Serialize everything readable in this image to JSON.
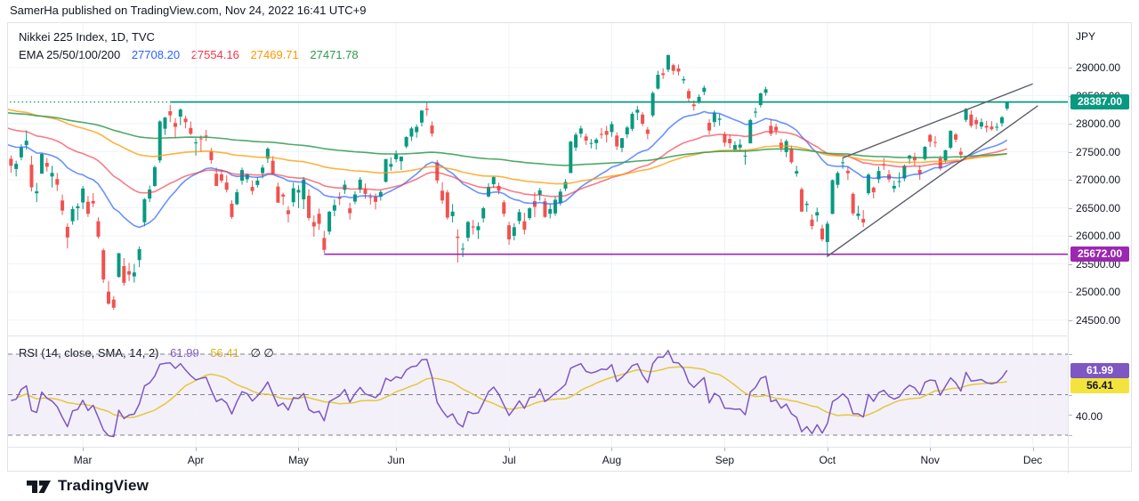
{
  "attribution": "SamerHa published on TradingView.com, Nov 24, 2022 16:41 UTC+9",
  "footer": {
    "brand": "TradingView"
  },
  "chart_data": {
    "type": "candlestick",
    "title": "Nikkei 225 Index, 1D, TVC",
    "legend": {
      "title": "Nikkei 225 Index, 1D, TVC",
      "ema_label": "EMA 25/50/100/200",
      "ema_values": [
        "27708.20",
        "27554.16",
        "27469.71",
        "27471.78"
      ],
      "ema_colors": [
        "#2962ff",
        "#f23645",
        "#ff9800",
        "#2e9b4e"
      ]
    },
    "price_axis": {
      "currency": "JPY",
      "ticks": [
        {
          "label": "29000.00",
          "price": 29000
        },
        {
          "label": "28500.00",
          "price": 28500
        },
        {
          "label": "28000.00",
          "price": 28000
        },
        {
          "label": "27500.00",
          "price": 27500
        },
        {
          "label": "27000.00",
          "price": 27000
        },
        {
          "label": "26500.00",
          "price": 26500
        },
        {
          "label": "26000.00",
          "price": 26000
        },
        {
          "label": "25500.00",
          "price": 25500
        },
        {
          "label": "25000.00",
          "price": 25000
        },
        {
          "label": "24500.00",
          "price": 24500
        }
      ]
    },
    "time_axis": {
      "months": [
        {
          "label": "Mar",
          "index": 15
        },
        {
          "label": "Apr",
          "index": 37
        },
        {
          "label": "May",
          "index": 57
        },
        {
          "label": "Jun",
          "index": 76
        },
        {
          "label": "Jul",
          "index": 98
        },
        {
          "label": "Aug",
          "index": 118
        },
        {
          "label": "Sep",
          "index": 140
        },
        {
          "label": "Oct",
          "index": 160
        },
        {
          "label": "Nov",
          "index": 180
        },
        {
          "label": "Dec",
          "index": 200
        }
      ]
    },
    "candles": [
      [
        27300,
        27499,
        27172,
        27440
      ],
      [
        27374,
        27434,
        27123,
        27249
      ],
      [
        27192,
        27340,
        27060,
        27284
      ],
      [
        27400,
        27633,
        27347,
        27580
      ],
      [
        27618,
        27881,
        27541,
        27696
      ],
      [
        27268,
        27427,
        26793,
        26866
      ],
      [
        26759,
        26944,
        26602,
        26793
      ],
      [
        27110,
        27478,
        27102,
        27460
      ],
      [
        27301,
        27391,
        27148,
        27233
      ],
      [
        27058,
        27250,
        26862,
        27122
      ],
      [
        27013,
        27123,
        26800,
        26911
      ],
      [
        26630,
        26734,
        26371,
        26450
      ],
      [
        26160,
        26221,
        25775,
        25971
      ],
      [
        26260,
        26530,
        26198,
        26477
      ],
      [
        26493,
        26582,
        26278,
        26527
      ],
      [
        26595,
        26888,
        26478,
        26844
      ],
      [
        26608,
        26712,
        26336,
        26393
      ],
      [
        26622,
        26760,
        26512,
        26577
      ],
      [
        26260,
        26330,
        25954,
        25985
      ],
      [
        25743,
        25774,
        25159,
        25221
      ],
      [
        25004,
        25196,
        24771,
        24790
      ],
      [
        24862,
        24928,
        24681,
        24718
      ],
      [
        25266,
        25695,
        25256,
        25690
      ],
      [
        25459,
        25603,
        25111,
        25162
      ],
      [
        25370,
        25518,
        25194,
        25308
      ],
      [
        25276,
        25499,
        25166,
        25346
      ],
      [
        25568,
        25809,
        25442,
        25762
      ],
      [
        26242,
        26673,
        26172,
        26653
      ],
      [
        26665,
        26898,
        26602,
        26827
      ],
      [
        26890,
        27254,
        26874,
        27224
      ],
      [
        27345,
        28059,
        27299,
        28040
      ],
      [
        27910,
        28120,
        27800,
        28110
      ],
      [
        28222,
        28338,
        28028,
        28150
      ],
      [
        28012,
        28099,
        27745,
        27944
      ],
      [
        28127,
        28273,
        27973,
        28252
      ],
      [
        28091,
        28140,
        27916,
        28027
      ],
      [
        27924,
        28040,
        27795,
        27821
      ],
      [
        27665,
        27738,
        27430,
        27666
      ],
      [
        27738,
        27791,
        27493,
        27736
      ],
      [
        27789,
        27890,
        27688,
        27787
      ],
      [
        27509,
        27567,
        27290,
        27350
      ],
      [
        27107,
        27216,
        26888,
        26889
      ],
      [
        27097,
        27178,
        26943,
        26986
      ],
      [
        26950,
        27080,
        26774,
        26821
      ],
      [
        26572,
        26635,
        26304,
        26335
      ],
      [
        26564,
        26833,
        26547,
        26777
      ],
      [
        26984,
        27217,
        26912,
        27172
      ],
      [
        27011,
        27107,
        26945,
        27093
      ],
      [
        26872,
        26985,
        26733,
        26799
      ],
      [
        26907,
        27048,
        26862,
        26985
      ],
      [
        27119,
        27267,
        27025,
        27217
      ],
      [
        27377,
        27580,
        27301,
        27553
      ],
      [
        27339,
        27421,
        27088,
        27105
      ],
      [
        26879,
        26949,
        26590,
        26591
      ],
      [
        26737,
        26770,
        26550,
        26700
      ],
      [
        26455,
        26529,
        26239,
        26386
      ],
      [
        26600,
        26948,
        26520,
        26848
      ],
      [
        26771,
        26900,
        26495,
        26819
      ],
      [
        26650,
        27049,
        26477,
        27004
      ],
      [
        26715,
        26830,
        26274,
        26319
      ],
      [
        26245,
        26364,
        25983,
        26167
      ],
      [
        26394,
        26485,
        26107,
        26214
      ],
      [
        25961,
        26090,
        25688,
        25749
      ],
      [
        26075,
        26447,
        26020,
        26428
      ],
      [
        26450,
        26650,
        26349,
        26547
      ],
      [
        26687,
        26778,
        26548,
        26660
      ],
      [
        26819,
        26990,
        26746,
        26912
      ],
      [
        26490,
        26590,
        26289,
        26403
      ],
      [
        26611,
        26795,
        26565,
        26739
      ],
      [
        26822,
        27046,
        26763,
        27002
      ],
      [
        26834,
        26933,
        26658,
        26748
      ],
      [
        26690,
        26757,
        26556,
        26678
      ],
      [
        26699,
        26755,
        26470,
        26605
      ],
      [
        26698,
        26810,
        26628,
        26782
      ],
      [
        26962,
        27370,
        26953,
        27369
      ],
      [
        27232,
        27400,
        27160,
        27280
      ],
      [
        27366,
        27524,
        27310,
        27458
      ],
      [
        27330,
        27416,
        27175,
        27414
      ],
      [
        27593,
        27775,
        27560,
        27762
      ],
      [
        27770,
        27944,
        27690,
        27916
      ],
      [
        27848,
        27988,
        27750,
        27944
      ],
      [
        28020,
        28244,
        27950,
        28234
      ],
      [
        28268,
        28389,
        28141,
        28247
      ],
      [
        27968,
        28040,
        27770,
        27824
      ],
      [
        27310,
        27355,
        26933,
        26987
      ],
      [
        26804,
        26956,
        26571,
        26630
      ],
      [
        26775,
        26818,
        26290,
        26326
      ],
      [
        26350,
        26566,
        26240,
        26431
      ],
      [
        25986,
        26118,
        25520,
        25963
      ],
      [
        25770,
        25869,
        25621,
        25771
      ],
      [
        25966,
        26268,
        25902,
        26246
      ],
      [
        26168,
        26283,
        26025,
        26149
      ],
      [
        26100,
        26239,
        25943,
        26171
      ],
      [
        26312,
        26521,
        26240,
        26492
      ],
      [
        26702,
        26940,
        26686,
        26871
      ],
      [
        26920,
        27062,
        26856,
        27049
      ],
      [
        26890,
        26949,
        26739,
        26804
      ],
      [
        26598,
        26635,
        26339,
        26393
      ],
      [
        26188,
        26246,
        25841,
        25936
      ],
      [
        26000,
        26224,
        25920,
        26154
      ],
      [
        26264,
        26477,
        26205,
        26423
      ],
      [
        26260,
        26414,
        26026,
        26108
      ],
      [
        26317,
        26510,
        26282,
        26490
      ],
      [
        26620,
        26778,
        26333,
        26517
      ],
      [
        26730,
        26854,
        26630,
        26812
      ],
      [
        26617,
        26672,
        26323,
        26337
      ],
      [
        26393,
        26566,
        26310,
        26478
      ],
      [
        26400,
        26697,
        26355,
        26643
      ],
      [
        26580,
        26837,
        26542,
        26788
      ],
      [
        26842,
        27010,
        26800,
        26961
      ],
      [
        27119,
        27695,
        27119,
        27680
      ],
      [
        27575,
        27841,
        27513,
        27803
      ],
      [
        27822,
        27965,
        27752,
        27915
      ],
      [
        27772,
        27822,
        27622,
        27699
      ],
      [
        27640,
        27728,
        27560,
        27655
      ],
      [
        27654,
        27745,
        27539,
        27716
      ],
      [
        27818,
        27924,
        27733,
        27815
      ],
      [
        27870,
        27960,
        27666,
        27802
      ],
      [
        27850,
        28040,
        27767,
        27993
      ],
      [
        27788,
        27847,
        27530,
        27595
      ],
      [
        27569,
        27744,
        27491,
        27742
      ],
      [
        27810,
        27962,
        27744,
        27932
      ],
      [
        27907,
        28211,
        27868,
        28176
      ],
      [
        28197,
        28316,
        28064,
        28249
      ],
      [
        28163,
        28210,
        27958,
        27999
      ],
      [
        27896,
        27943,
        27727,
        27819
      ],
      [
        28147,
        28574,
        28117,
        28547
      ],
      [
        28626,
        28944,
        28608,
        28872
      ],
      [
        28898,
        28988,
        28797,
        28868
      ],
      [
        28964,
        29234,
        28918,
        29223
      ],
      [
        29044,
        29072,
        28873,
        28943
      ],
      [
        28985,
        29058,
        28860,
        28930
      ],
      [
        28772,
        28848,
        28712,
        28795
      ],
      [
        28583,
        28627,
        28397,
        28452
      ],
      [
        28344,
        28416,
        28236,
        28313
      ],
      [
        28389,
        28522,
        28356,
        28479
      ],
      [
        28567,
        28680,
        28508,
        28641
      ],
      [
        28016,
        28081,
        27805,
        27879
      ],
      [
        28030,
        28239,
        27940,
        28196
      ],
      [
        28069,
        28179,
        27965,
        28092
      ],
      [
        27811,
        27856,
        27592,
        27661
      ],
      [
        27730,
        27808,
        27560,
        27651
      ],
      [
        27531,
        27685,
        27500,
        27620
      ],
      [
        27574,
        27724,
        27506,
        27627
      ],
      [
        27428,
        27544,
        27269,
        27430
      ],
      [
        27650,
        28088,
        27646,
        28066
      ],
      [
        28197,
        28286,
        28110,
        28215
      ],
      [
        28333,
        28553,
        28292,
        28542
      ],
      [
        28550,
        28659,
        28498,
        28614
      ],
      [
        27962,
        28083,
        27779,
        27819
      ],
      [
        27944,
        28000,
        27801,
        27876
      ],
      [
        27661,
        27730,
        27497,
        27568
      ],
      [
        27494,
        27721,
        27404,
        27688
      ],
      [
        27557,
        27611,
        27283,
        27313
      ],
      [
        27111,
        27250,
        27056,
        27154
      ],
      [
        26830,
        26866,
        26423,
        26432
      ],
      [
        26550,
        26618,
        26427,
        26572
      ],
      [
        26290,
        26382,
        26111,
        26174
      ],
      [
        26363,
        26503,
        26249,
        26422
      ],
      [
        26132,
        26198,
        25901,
        25937
      ],
      [
        25890,
        26260,
        25621,
        26216
      ],
      [
        26390,
        27004,
        26387,
        26992
      ],
      [
        26910,
        27152,
        26852,
        27121
      ],
      [
        27301,
        27399,
        27196,
        27311
      ],
      [
        27160,
        27238,
        26994,
        27116
      ],
      [
        26748,
        26775,
        26361,
        26401
      ],
      [
        26354,
        26536,
        26288,
        26397
      ],
      [
        26304,
        26461,
        26156,
        26237
      ],
      [
        26762,
        27118,
        26725,
        27091
      ],
      [
        26860,
        26880,
        26666,
        26776
      ],
      [
        27009,
        27236,
        26940,
        27156
      ],
      [
        27275,
        27389,
        27175,
        27257
      ],
      [
        27095,
        27175,
        26956,
        27007
      ],
      [
        26845,
        26982,
        26775,
        26891
      ],
      [
        26974,
        27132,
        26863,
        26975
      ],
      [
        27023,
        27272,
        26975,
        27250
      ],
      [
        27377,
        27446,
        27283,
        27431
      ],
      [
        27411,
        27482,
        27249,
        27345
      ],
      [
        27175,
        27257,
        26999,
        27105
      ],
      [
        27370,
        27600,
        27342,
        27587
      ],
      [
        27800,
        27821,
        27585,
        27678
      ],
      [
        27672,
        27779,
        27580,
        27663
      ],
      [
        27381,
        27432,
        27164,
        27200
      ],
      [
        27343,
        27536,
        27307,
        27527
      ],
      [
        27572,
        27885,
        27546,
        27872
      ],
      [
        27808,
        27837,
        27666,
        27716
      ],
      [
        27500,
        27571,
        27376,
        27446
      ],
      [
        28069,
        28280,
        28029,
        28264
      ],
      [
        28163,
        28236,
        27930,
        27963
      ],
      [
        28066,
        28118,
        27903,
        27990
      ],
      [
        27949,
        28094,
        27903,
        28028
      ],
      [
        27961,
        28051,
        27847,
        27930
      ],
      [
        27949,
        28045,
        27877,
        27900
      ],
      [
        27942,
        28012,
        27873,
        27945
      ],
      [
        28009,
        28139,
        27950,
        28115
      ],
      [
        28270,
        28400,
        28234,
        28383
      ]
    ],
    "emas": {
      "periods": [
        25,
        50,
        100,
        200
      ],
      "seeds": [
        27650,
        27950,
        28280,
        28205
      ]
    },
    "drawings": {
      "horizontal_rays": [
        {
          "price": 28387,
          "label": "28387.00",
          "color": "#089981",
          "start_index": 32,
          "dotted_left_extension": true
        },
        {
          "price": 25672,
          "label": "25672.00",
          "color": "#9c27b0",
          "start_index": 62,
          "dotted_left_extension": false
        }
      ],
      "trend_lines": [
        {
          "from_index": 160,
          "from_price": 25635,
          "to_index": 201,
          "to_price": 28320
        },
        {
          "from_index": 163,
          "from_price": 27390,
          "to_index": 200,
          "to_price": 28710
        }
      ]
    },
    "rsi_pane": {
      "legend": "RSI (14, close, SMA, 14, 2)",
      "rsi_value": "61.99",
      "ma_value": "56.41",
      "empty_values": "∅ ∅",
      "levels": {
        "upper": 70,
        "middle": 50,
        "lower": 30
      },
      "axis_tick": "40.00",
      "rsi_color": "#7e57c2",
      "ma_color": "#e5c73d",
      "badge_rsi_color": "#7e57c2",
      "badge_ma_color": "#f5e33d",
      "band_color": "rgba(126,87,194,0.09)"
    },
    "colors": {
      "up": "#089981",
      "down": "#ef5350",
      "grid": "#f0f3fa",
      "border": "#e0e3eb",
      "text": "#131722",
      "trend": "#5d606b",
      "dashed": "#6a6d78"
    }
  }
}
